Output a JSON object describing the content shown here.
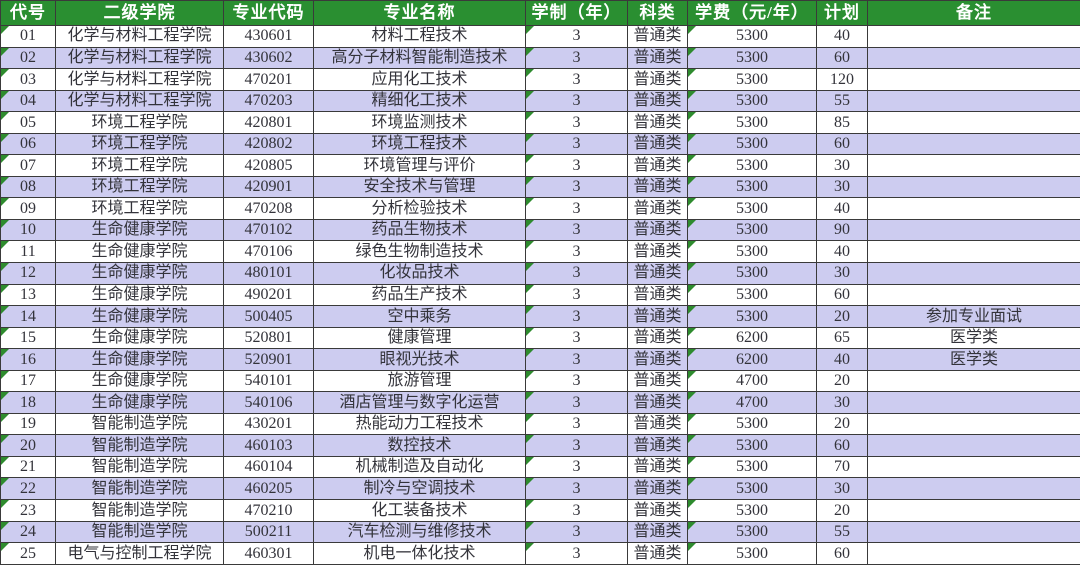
{
  "colors": {
    "header_bg": "#2a8f31",
    "header_text": "#ffffff",
    "row_bg": "#ffffff",
    "row_alt_bg": "#cdccf0",
    "border": "#3a3a3a",
    "cell_text": "#33333a",
    "triangle": "#2e8b2e"
  },
  "table": {
    "columns": [
      "代号",
      "二级学院",
      "专业代码",
      "专业名称",
      "学制（年）",
      "科类",
      "学费（元/年）",
      "计划",
      "备注"
    ],
    "rows": [
      {
        "code": "01",
        "college": "化学与材料工程学院",
        "major_code": "430601",
        "major_name": "材料工程技术",
        "years": "3",
        "category": "普通类",
        "tuition": "5300",
        "plan": "40",
        "remark": ""
      },
      {
        "code": "02",
        "college": "化学与材料工程学院",
        "major_code": "430602",
        "major_name": "高分子材料智能制造技术",
        "years": "3",
        "category": "普通类",
        "tuition": "5300",
        "plan": "60",
        "remark": ""
      },
      {
        "code": "03",
        "college": "化学与材料工程学院",
        "major_code": "470201",
        "major_name": "应用化工技术",
        "years": "3",
        "category": "普通类",
        "tuition": "5300",
        "plan": "120",
        "remark": ""
      },
      {
        "code": "04",
        "college": "化学与材料工程学院",
        "major_code": "470203",
        "major_name": "精细化工技术",
        "years": "3",
        "category": "普通类",
        "tuition": "5300",
        "plan": "55",
        "remark": ""
      },
      {
        "code": "05",
        "college": "环境工程学院",
        "major_code": "420801",
        "major_name": "环境监测技术",
        "years": "3",
        "category": "普通类",
        "tuition": "5300",
        "plan": "85",
        "remark": ""
      },
      {
        "code": "06",
        "college": "环境工程学院",
        "major_code": "420802",
        "major_name": "环境工程技术",
        "years": "3",
        "category": "普通类",
        "tuition": "5300",
        "plan": "60",
        "remark": ""
      },
      {
        "code": "07",
        "college": "环境工程学院",
        "major_code": "420805",
        "major_name": "环境管理与评价",
        "years": "3",
        "category": "普通类",
        "tuition": "5300",
        "plan": "30",
        "remark": ""
      },
      {
        "code": "08",
        "college": "环境工程学院",
        "major_code": "420901",
        "major_name": "安全技术与管理",
        "years": "3",
        "category": "普通类",
        "tuition": "5300",
        "plan": "30",
        "remark": ""
      },
      {
        "code": "09",
        "college": "环境工程学院",
        "major_code": "470208",
        "major_name": "分析检验技术",
        "years": "3",
        "category": "普通类",
        "tuition": "5300",
        "plan": "40",
        "remark": ""
      },
      {
        "code": "10",
        "college": "生命健康学院",
        "major_code": "470102",
        "major_name": "药品生物技术",
        "years": "3",
        "category": "普通类",
        "tuition": "5300",
        "plan": "90",
        "remark": ""
      },
      {
        "code": "11",
        "college": "生命健康学院",
        "major_code": "470106",
        "major_name": "绿色生物制造技术",
        "years": "3",
        "category": "普通类",
        "tuition": "5300",
        "plan": "40",
        "remark": ""
      },
      {
        "code": "12",
        "college": "生命健康学院",
        "major_code": "480101",
        "major_name": "化妆品技术",
        "years": "3",
        "category": "普通类",
        "tuition": "5300",
        "plan": "30",
        "remark": ""
      },
      {
        "code": "13",
        "college": "生命健康学院",
        "major_code": "490201",
        "major_name": "药品生产技术",
        "years": "3",
        "category": "普通类",
        "tuition": "5300",
        "plan": "60",
        "remark": ""
      },
      {
        "code": "14",
        "college": "生命健康学院",
        "major_code": "500405",
        "major_name": "空中乘务",
        "years": "3",
        "category": "普通类",
        "tuition": "5300",
        "plan": "20",
        "remark": "参加专业面试"
      },
      {
        "code": "15",
        "college": "生命健康学院",
        "major_code": "520801",
        "major_name": "健康管理",
        "years": "3",
        "category": "普通类",
        "tuition": "6200",
        "plan": "65",
        "remark": "医学类"
      },
      {
        "code": "16",
        "college": "生命健康学院",
        "major_code": "520901",
        "major_name": "眼视光技术",
        "years": "3",
        "category": "普通类",
        "tuition": "6200",
        "plan": "40",
        "remark": "医学类"
      },
      {
        "code": "17",
        "college": "生命健康学院",
        "major_code": "540101",
        "major_name": "旅游管理",
        "years": "3",
        "category": "普通类",
        "tuition": "4700",
        "plan": "20",
        "remark": ""
      },
      {
        "code": "18",
        "college": "生命健康学院",
        "major_code": "540106",
        "major_name": "酒店管理与数字化运营",
        "years": "3",
        "category": "普通类",
        "tuition": "4700",
        "plan": "30",
        "remark": ""
      },
      {
        "code": "19",
        "college": "智能制造学院",
        "major_code": "430201",
        "major_name": "热能动力工程技术",
        "years": "3",
        "category": "普通类",
        "tuition": "5300",
        "plan": "20",
        "remark": ""
      },
      {
        "code": "20",
        "college": "智能制造学院",
        "major_code": "460103",
        "major_name": "数控技术",
        "years": "3",
        "category": "普通类",
        "tuition": "5300",
        "plan": "60",
        "remark": ""
      },
      {
        "code": "21",
        "college": "智能制造学院",
        "major_code": "460104",
        "major_name": "机械制造及自动化",
        "years": "3",
        "category": "普通类",
        "tuition": "5300",
        "plan": "70",
        "remark": ""
      },
      {
        "code": "22",
        "college": "智能制造学院",
        "major_code": "460205",
        "major_name": "制冷与空调技术",
        "years": "3",
        "category": "普通类",
        "tuition": "5300",
        "plan": "30",
        "remark": ""
      },
      {
        "code": "23",
        "college": "智能制造学院",
        "major_code": "470210",
        "major_name": "化工装备技术",
        "years": "3",
        "category": "普通类",
        "tuition": "5300",
        "plan": "20",
        "remark": ""
      },
      {
        "code": "24",
        "college": "智能制造学院",
        "major_code": "500211",
        "major_name": "汽车检测与维修技术",
        "years": "3",
        "category": "普通类",
        "tuition": "5300",
        "plan": "55",
        "remark": ""
      },
      {
        "code": "25",
        "college": "电气与控制工程学院",
        "major_code": "460301",
        "major_name": "机电一体化技术",
        "years": "3",
        "category": "普通类",
        "tuition": "5300",
        "plan": "60",
        "remark": ""
      }
    ]
  }
}
